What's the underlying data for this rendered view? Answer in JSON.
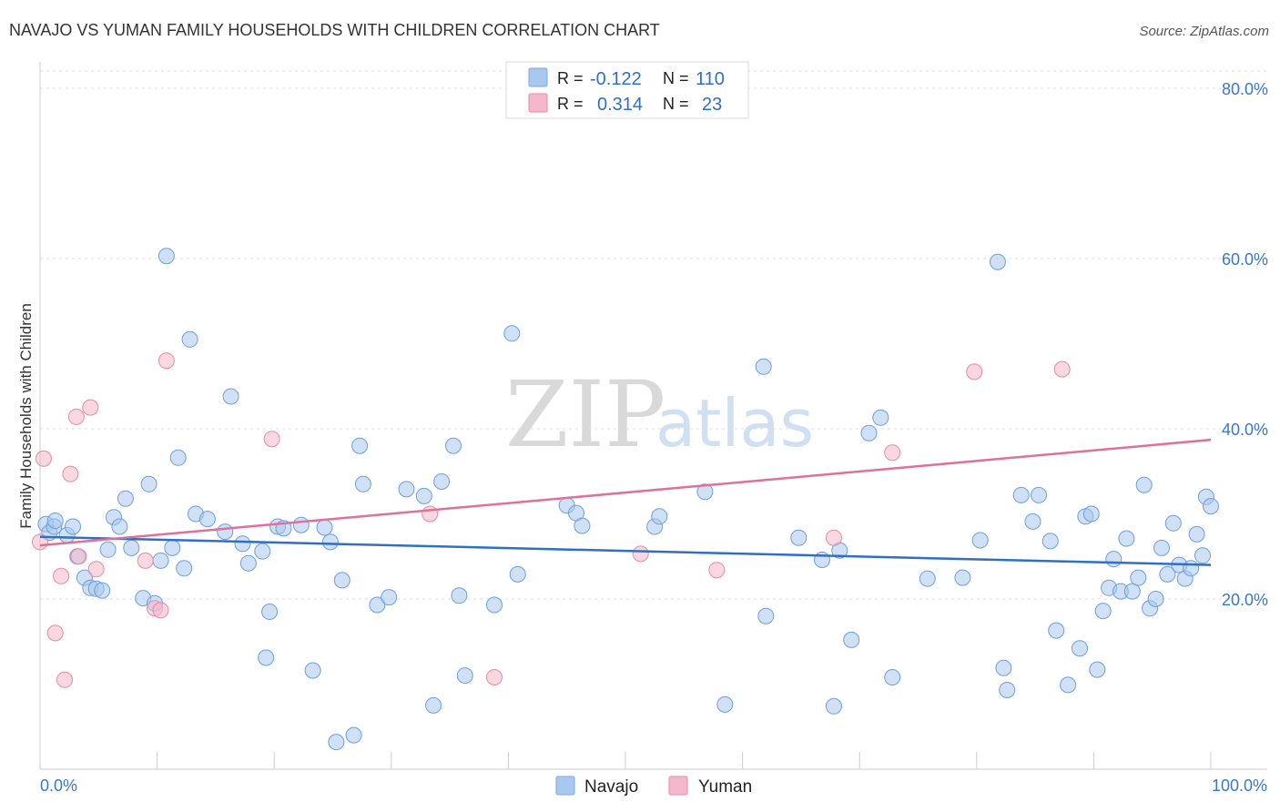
{
  "header": {
    "title": "NAVAJO VS YUMAN FAMILY HOUSEHOLDS WITH CHILDREN CORRELATION CHART",
    "source": "Source: ZipAtlas.com"
  },
  "watermark": {
    "zip": "ZIP",
    "atlas": "atlas"
  },
  "legend": {
    "rows": [
      {
        "r_label": "R =",
        "r_value": "-0.122",
        "n_label": "N =",
        "n_value": "110",
        "color": "#a9c8ef"
      },
      {
        "r_label": "R =",
        "r_value": "0.314",
        "n_label": "N =",
        "n_value": "23",
        "color": "#f5b8ca"
      }
    ]
  },
  "bottom_legend": [
    {
      "label": "Navajo",
      "color": "#a9c8ef"
    },
    {
      "label": "Yuman",
      "color": "#f5b8ca"
    }
  ],
  "chart_data": {
    "type": "scatter",
    "title": "NAVAJO VS YUMAN FAMILY HOUSEHOLDS WITH CHILDREN CORRELATION CHART",
    "xlabel": "",
    "ylabel": "Family Households with Children",
    "xlim": [
      0,
      100
    ],
    "ylim": [
      0,
      85
    ],
    "x_tick_labels": [
      "0.0%",
      "100.0%"
    ],
    "y_ticks": [
      20,
      40,
      60,
      80
    ],
    "y_tick_labels": [
      "20.0%",
      "40.0%",
      "60.0%",
      "80.0%"
    ],
    "grid": "horizontal dashed",
    "legend_position": "top-center",
    "series": [
      {
        "name": "Navajo",
        "color": "#a9c8ef",
        "stroke": "#6d9fdc",
        "trend": [
          [
            0,
            27.3
          ],
          [
            100,
            24.0
          ]
        ],
        "trend_color": "#2f6fc4",
        "points": [
          [
            0.5,
            28.8
          ],
          [
            0.8,
            27.8
          ],
          [
            1.2,
            28.5
          ],
          [
            1.3,
            29.2
          ],
          [
            2.3,
            27.5
          ],
          [
            2.8,
            28.5
          ],
          [
            3.2,
            25.0
          ],
          [
            3.8,
            22.5
          ],
          [
            4.3,
            21.3
          ],
          [
            4.8,
            21.2
          ],
          [
            5.3,
            21.0
          ],
          [
            5.8,
            25.8
          ],
          [
            6.3,
            29.6
          ],
          [
            6.8,
            28.5
          ],
          [
            7.3,
            31.8
          ],
          [
            7.8,
            26.0
          ],
          [
            8.8,
            20.1
          ],
          [
            9.3,
            33.5
          ],
          [
            9.8,
            19.5
          ],
          [
            10.3,
            24.5
          ],
          [
            10.8,
            60.3
          ],
          [
            11.3,
            26.0
          ],
          [
            11.8,
            36.6
          ],
          [
            12.3,
            23.6
          ],
          [
            12.8,
            50.5
          ],
          [
            13.3,
            30.0
          ],
          [
            14.3,
            29.4
          ],
          [
            15.8,
            27.9
          ],
          [
            16.3,
            43.8
          ],
          [
            17.3,
            26.5
          ],
          [
            17.8,
            24.2
          ],
          [
            19.0,
            25.6
          ],
          [
            19.3,
            13.1
          ],
          [
            19.6,
            18.5
          ],
          [
            20.3,
            28.5
          ],
          [
            20.8,
            28.3
          ],
          [
            22.3,
            28.7
          ],
          [
            23.3,
            11.6
          ],
          [
            24.3,
            28.4
          ],
          [
            24.8,
            26.7
          ],
          [
            25.3,
            3.2
          ],
          [
            25.8,
            22.2
          ],
          [
            26.8,
            4.0
          ],
          [
            27.3,
            38.0
          ],
          [
            27.6,
            33.5
          ],
          [
            28.8,
            19.3
          ],
          [
            29.8,
            20.2
          ],
          [
            31.3,
            32.9
          ],
          [
            32.8,
            32.1
          ],
          [
            33.6,
            7.5
          ],
          [
            34.3,
            33.8
          ],
          [
            35.3,
            38.0
          ],
          [
            35.8,
            20.4
          ],
          [
            36.3,
            11.0
          ],
          [
            38.8,
            19.3
          ],
          [
            40.3,
            51.2
          ],
          [
            40.8,
            22.9
          ],
          [
            45.0,
            31.0
          ],
          [
            45.8,
            30.1
          ],
          [
            46.3,
            28.6
          ],
          [
            52.5,
            28.5
          ],
          [
            52.9,
            29.7
          ],
          [
            56.8,
            32.6
          ],
          [
            58.5,
            7.6
          ],
          [
            61.8,
            47.3
          ],
          [
            62.0,
            18.0
          ],
          [
            64.8,
            27.2
          ],
          [
            66.8,
            24.6
          ],
          [
            67.8,
            7.4
          ],
          [
            68.3,
            25.7
          ],
          [
            69.3,
            15.2
          ],
          [
            70.8,
            39.5
          ],
          [
            71.8,
            41.3
          ],
          [
            72.8,
            10.8
          ],
          [
            75.8,
            22.4
          ],
          [
            78.8,
            22.5
          ],
          [
            80.3,
            26.9
          ],
          [
            81.8,
            59.6
          ],
          [
            82.3,
            11.9
          ],
          [
            82.6,
            9.3
          ],
          [
            83.8,
            32.2
          ],
          [
            84.8,
            29.1
          ],
          [
            85.3,
            32.2
          ],
          [
            86.3,
            26.8
          ],
          [
            86.8,
            16.3
          ],
          [
            87.8,
            9.9
          ],
          [
            88.8,
            14.2
          ],
          [
            89.3,
            29.7
          ],
          [
            89.8,
            30.0
          ],
          [
            90.3,
            11.7
          ],
          [
            90.8,
            18.6
          ],
          [
            91.3,
            21.3
          ],
          [
            91.7,
            24.7
          ],
          [
            92.3,
            20.9
          ],
          [
            92.8,
            27.1
          ],
          [
            93.3,
            20.9
          ],
          [
            93.8,
            22.5
          ],
          [
            94.3,
            33.4
          ],
          [
            94.8,
            18.9
          ],
          [
            95.3,
            20.0
          ],
          [
            95.8,
            26.0
          ],
          [
            96.3,
            22.9
          ],
          [
            96.8,
            28.9
          ],
          [
            97.3,
            24.0
          ],
          [
            97.8,
            22.4
          ],
          [
            98.3,
            23.6
          ],
          [
            98.8,
            27.6
          ],
          [
            99.3,
            25.1
          ],
          [
            99.6,
            32.0
          ],
          [
            100.0,
            30.9
          ]
        ]
      },
      {
        "name": "Yuman",
        "color": "#f5b8ca",
        "stroke": "#e68aa6",
        "trend": [
          [
            0,
            26.3
          ],
          [
            100,
            38.7
          ]
        ],
        "trend_color": "#e0709a",
        "points": [
          [
            0.0,
            26.7
          ],
          [
            0.3,
            36.5
          ],
          [
            1.3,
            16.0
          ],
          [
            1.8,
            22.7
          ],
          [
            2.1,
            10.5
          ],
          [
            2.6,
            34.7
          ],
          [
            3.1,
            41.4
          ],
          [
            3.3,
            25.0
          ],
          [
            4.3,
            42.5
          ],
          [
            4.8,
            23.5
          ],
          [
            9.0,
            24.5
          ],
          [
            9.8,
            18.9
          ],
          [
            10.3,
            18.7
          ],
          [
            10.8,
            48.0
          ],
          [
            19.8,
            38.8
          ],
          [
            33.3,
            30.0
          ],
          [
            38.8,
            10.8
          ],
          [
            51.3,
            25.3
          ],
          [
            57.8,
            23.4
          ],
          [
            67.8,
            27.2
          ],
          [
            72.8,
            37.2
          ],
          [
            79.8,
            46.7
          ],
          [
            87.3,
            47.0
          ]
        ]
      }
    ]
  }
}
